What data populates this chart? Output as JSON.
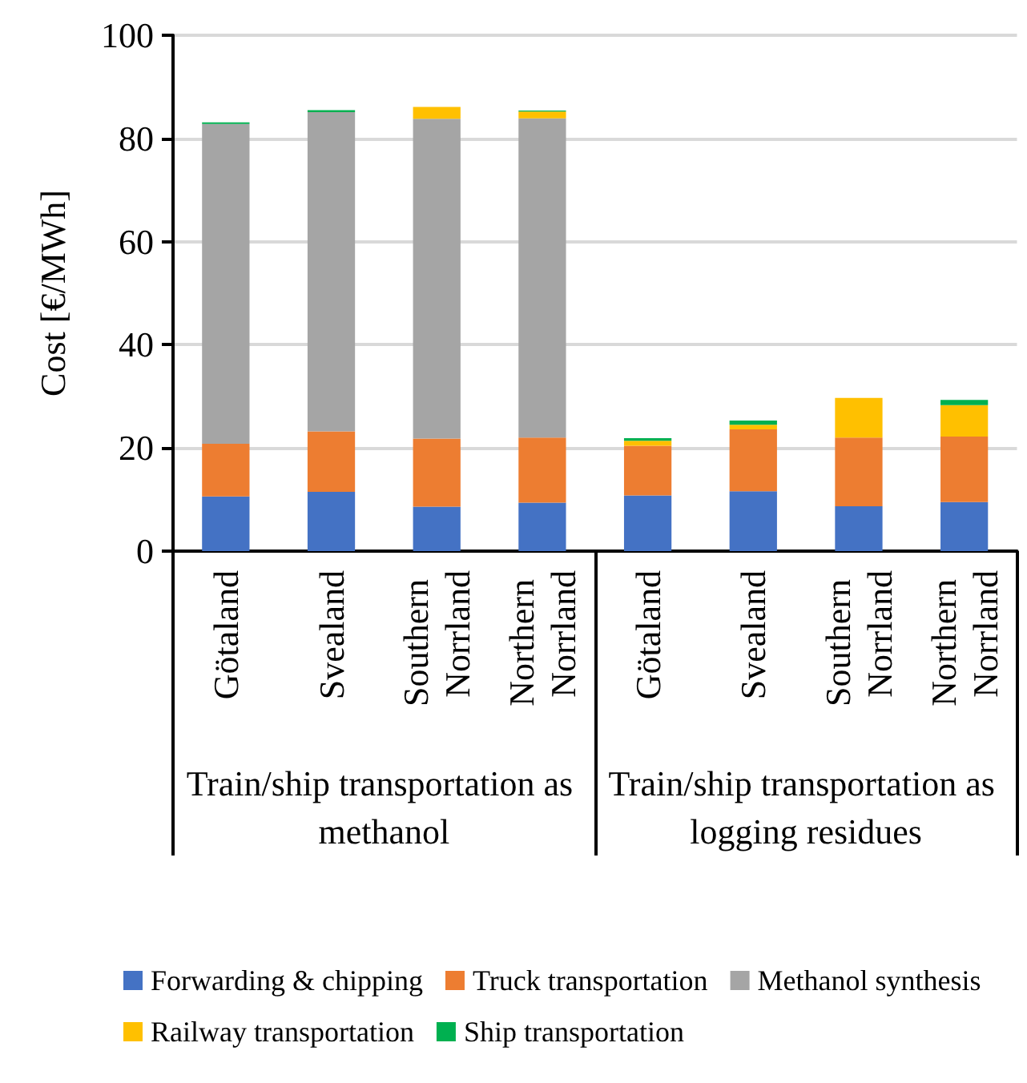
{
  "chart_data": {
    "type": "bar",
    "stacked": true,
    "ylabel": "Cost [€/MWh]",
    "categories": [
      "Götaland",
      "Svealand",
      "Southern Norrland",
      "Northern Norrland",
      "Götaland",
      "Svealand",
      "Southern Norrland",
      "Northern Norrland"
    ],
    "annotations": [
      "Train/ship transportation as methanol",
      "Train/ship transportation as logging residues"
    ],
    "series": [
      {
        "name": "Forwarding & chipping",
        "color": "#4472c4",
        "values": [
          10.6,
          11.5,
          8.6,
          9.4,
          10.8,
          11.6,
          8.7,
          9.5
        ]
      },
      {
        "name": "Truck transportation",
        "color": "#ed7d31",
        "values": [
          10.2,
          11.7,
          13.2,
          12.6,
          9.6,
          12.0,
          13.3,
          12.7
        ]
      },
      {
        "name": "Methanol synthesis",
        "color": "#a5a5a5",
        "values": [
          62.0,
          61.9,
          62.0,
          61.9,
          0,
          0,
          0,
          0
        ]
      },
      {
        "name": "Railway transportation",
        "color": "#ffc000",
        "values": [
          0,
          0,
          2.3,
          1.3,
          1.0,
          0.9,
          7.7,
          6.1
        ]
      },
      {
        "name": "Ship transportation",
        "color": "#00b050",
        "values": [
          0.3,
          0.4,
          0,
          0.2,
          0.5,
          0.8,
          0,
          1.0
        ]
      }
    ],
    "ylim": [
      0,
      100
    ],
    "yticks": [
      0,
      20,
      40,
      60,
      80,
      100
    ],
    "grid": "y",
    "legend": "bottom"
  }
}
